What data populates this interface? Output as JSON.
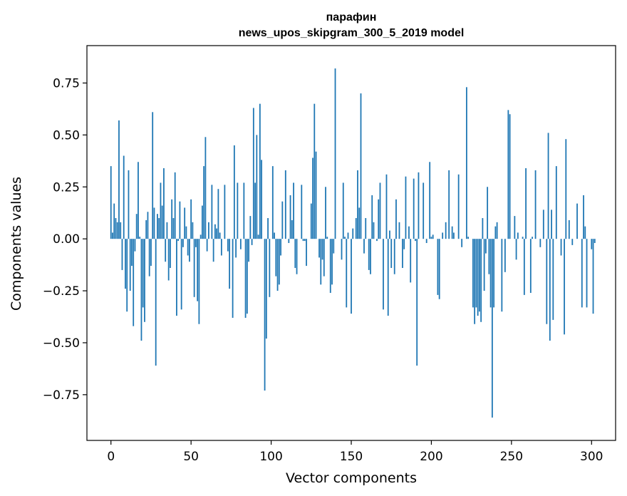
{
  "chart_data": {
    "type": "bar",
    "title": "парафин",
    "subtitle": "news_upos_skipgram_300_5_2019 model",
    "xlabel": "Vector components",
    "ylabel": "Components values",
    "xlim": [
      -15,
      315
    ],
    "ylim": [
      -0.97,
      0.93
    ],
    "xticks": [
      0,
      50,
      100,
      150,
      200,
      250,
      300
    ],
    "xtick_labels": [
      "0",
      "50",
      "100",
      "150",
      "200",
      "250",
      "300"
    ],
    "yticks": [
      -0.75,
      -0.5,
      -0.25,
      0.0,
      0.25,
      0.5,
      0.75
    ],
    "ytick_labels": [
      "−0.75",
      "−0.50",
      "−0.25",
      "0.00",
      "0.25",
      "0.50",
      "0.75"
    ],
    "grid": false,
    "bar_color": "#1f77b4",
    "values": [
      0.35,
      0.03,
      0.17,
      0.1,
      0.08,
      0.57,
      0.08,
      -0.15,
      0.4,
      -0.24,
      -0.35,
      0.33,
      -0.25,
      -0.13,
      -0.42,
      -0.06,
      0.12,
      0.37,
      0.01,
      -0.49,
      -0.33,
      -0.4,
      0.09,
      0.13,
      -0.18,
      -0.13,
      0.61,
      0.15,
      -0.61,
      0.12,
      0.1,
      0.27,
      0.16,
      0.34,
      -0.11,
      0.08,
      -0.2,
      -0.14,
      0.19,
      0.1,
      0.32,
      -0.37,
      -0.01,
      0.18,
      -0.34,
      -0.04,
      0.15,
      0.06,
      -0.08,
      -0.11,
      0.19,
      0.08,
      -0.28,
      -0.04,
      -0.3,
      -0.41,
      0.02,
      0.16,
      0.35,
      0.49,
      -0.06,
      0.08,
      0.0,
      0.26,
      -0.11,
      0.07,
      0.05,
      0.24,
      0.03,
      -0.08,
      0.0,
      0.26,
      0.0,
      -0.06,
      -0.24,
      0.0,
      -0.38,
      0.45,
      -0.09,
      0.27,
      0.0,
      -0.05,
      0.0,
      0.27,
      -0.38,
      -0.36,
      -0.11,
      0.11,
      -0.03,
      0.63,
      0.27,
      0.5,
      0.02,
      0.65,
      0.38,
      0.0,
      -0.73,
      -0.48,
      0.1,
      -0.28,
      0.0,
      0.35,
      0.03,
      -0.18,
      -0.25,
      -0.22,
      -0.08,
      0.18,
      0.0,
      0.33,
      0.0,
      -0.02,
      0.21,
      0.09,
      0.27,
      -0.14,
      -0.17,
      0.0,
      0.0,
      0.26,
      -0.01,
      -0.01,
      -0.13,
      0.0,
      0.0,
      0.17,
      0.39,
      0.65,
      0.42,
      0.0,
      -0.09,
      -0.22,
      -0.1,
      -0.18,
      0.25,
      0.01,
      0.0,
      -0.26,
      -0.22,
      -0.07,
      0.82,
      0.0,
      0.0,
      0.0,
      -0.1,
      0.27,
      0.01,
      -0.33,
      0.03,
      0.0,
      -0.36,
      0.05,
      0.0,
      0.1,
      0.33,
      0.15,
      0.7,
      0.0,
      -0.07,
      0.1,
      0.0,
      -0.15,
      -0.17,
      0.21,
      0.08,
      0.0,
      -0.01,
      0.19,
      0.27,
      0.0,
      -0.34,
      0.0,
      0.31,
      -0.37,
      0.04,
      -0.14,
      0.0,
      -0.17,
      0.19,
      0.0,
      0.08,
      0.0,
      -0.14,
      -0.05,
      0.3,
      0.0,
      0.06,
      -0.21,
      0.0,
      0.29,
      -0.01,
      -0.61,
      0.32,
      0.0,
      0.0,
      0.27,
      0.0,
      -0.02,
      0.0,
      0.37,
      0.01,
      0.02,
      0.0,
      0.0,
      -0.27,
      -0.29,
      0.0,
      0.03,
      0.0,
      0.08,
      0.0,
      0.33,
      0.0,
      0.06,
      0.03,
      0.0,
      0.0,
      0.31,
      0.0,
      -0.04,
      0.0,
      0.0,
      0.73,
      0.01,
      0.0,
      0.0,
      -0.33,
      -0.41,
      -0.33,
      -0.37,
      -0.35,
      -0.4,
      0.1,
      -0.25,
      -0.07,
      0.25,
      -0.17,
      -0.33,
      -0.86,
      -0.33,
      0.06,
      0.08,
      0.0,
      0.0,
      -0.35,
      0.0,
      -0.16,
      0.0,
      0.62,
      0.6,
      0.0,
      0.0,
      0.11,
      -0.1,
      0.03,
      0.0,
      0.0,
      0.01,
      -0.27,
      0.34,
      0.0,
      0.0,
      -0.26,
      0.01,
      0.0,
      0.33,
      0.0,
      0.0,
      -0.04,
      0.0,
      0.14,
      0.0,
      -0.41,
      0.51,
      -0.49,
      0.14,
      -0.39,
      0.0,
      0.35,
      0.0,
      0.0,
      -0.08,
      0.0,
      -0.46,
      0.48,
      0.0,
      0.09,
      0.0,
      -0.03,
      0.0,
      0.0,
      0.17,
      0.0,
      0.0,
      -0.33,
      0.21,
      0.06,
      -0.33,
      0.0,
      0.0,
      -0.05,
      -0.36,
      -0.02,
      0.0,
      0.0
    ]
  }
}
